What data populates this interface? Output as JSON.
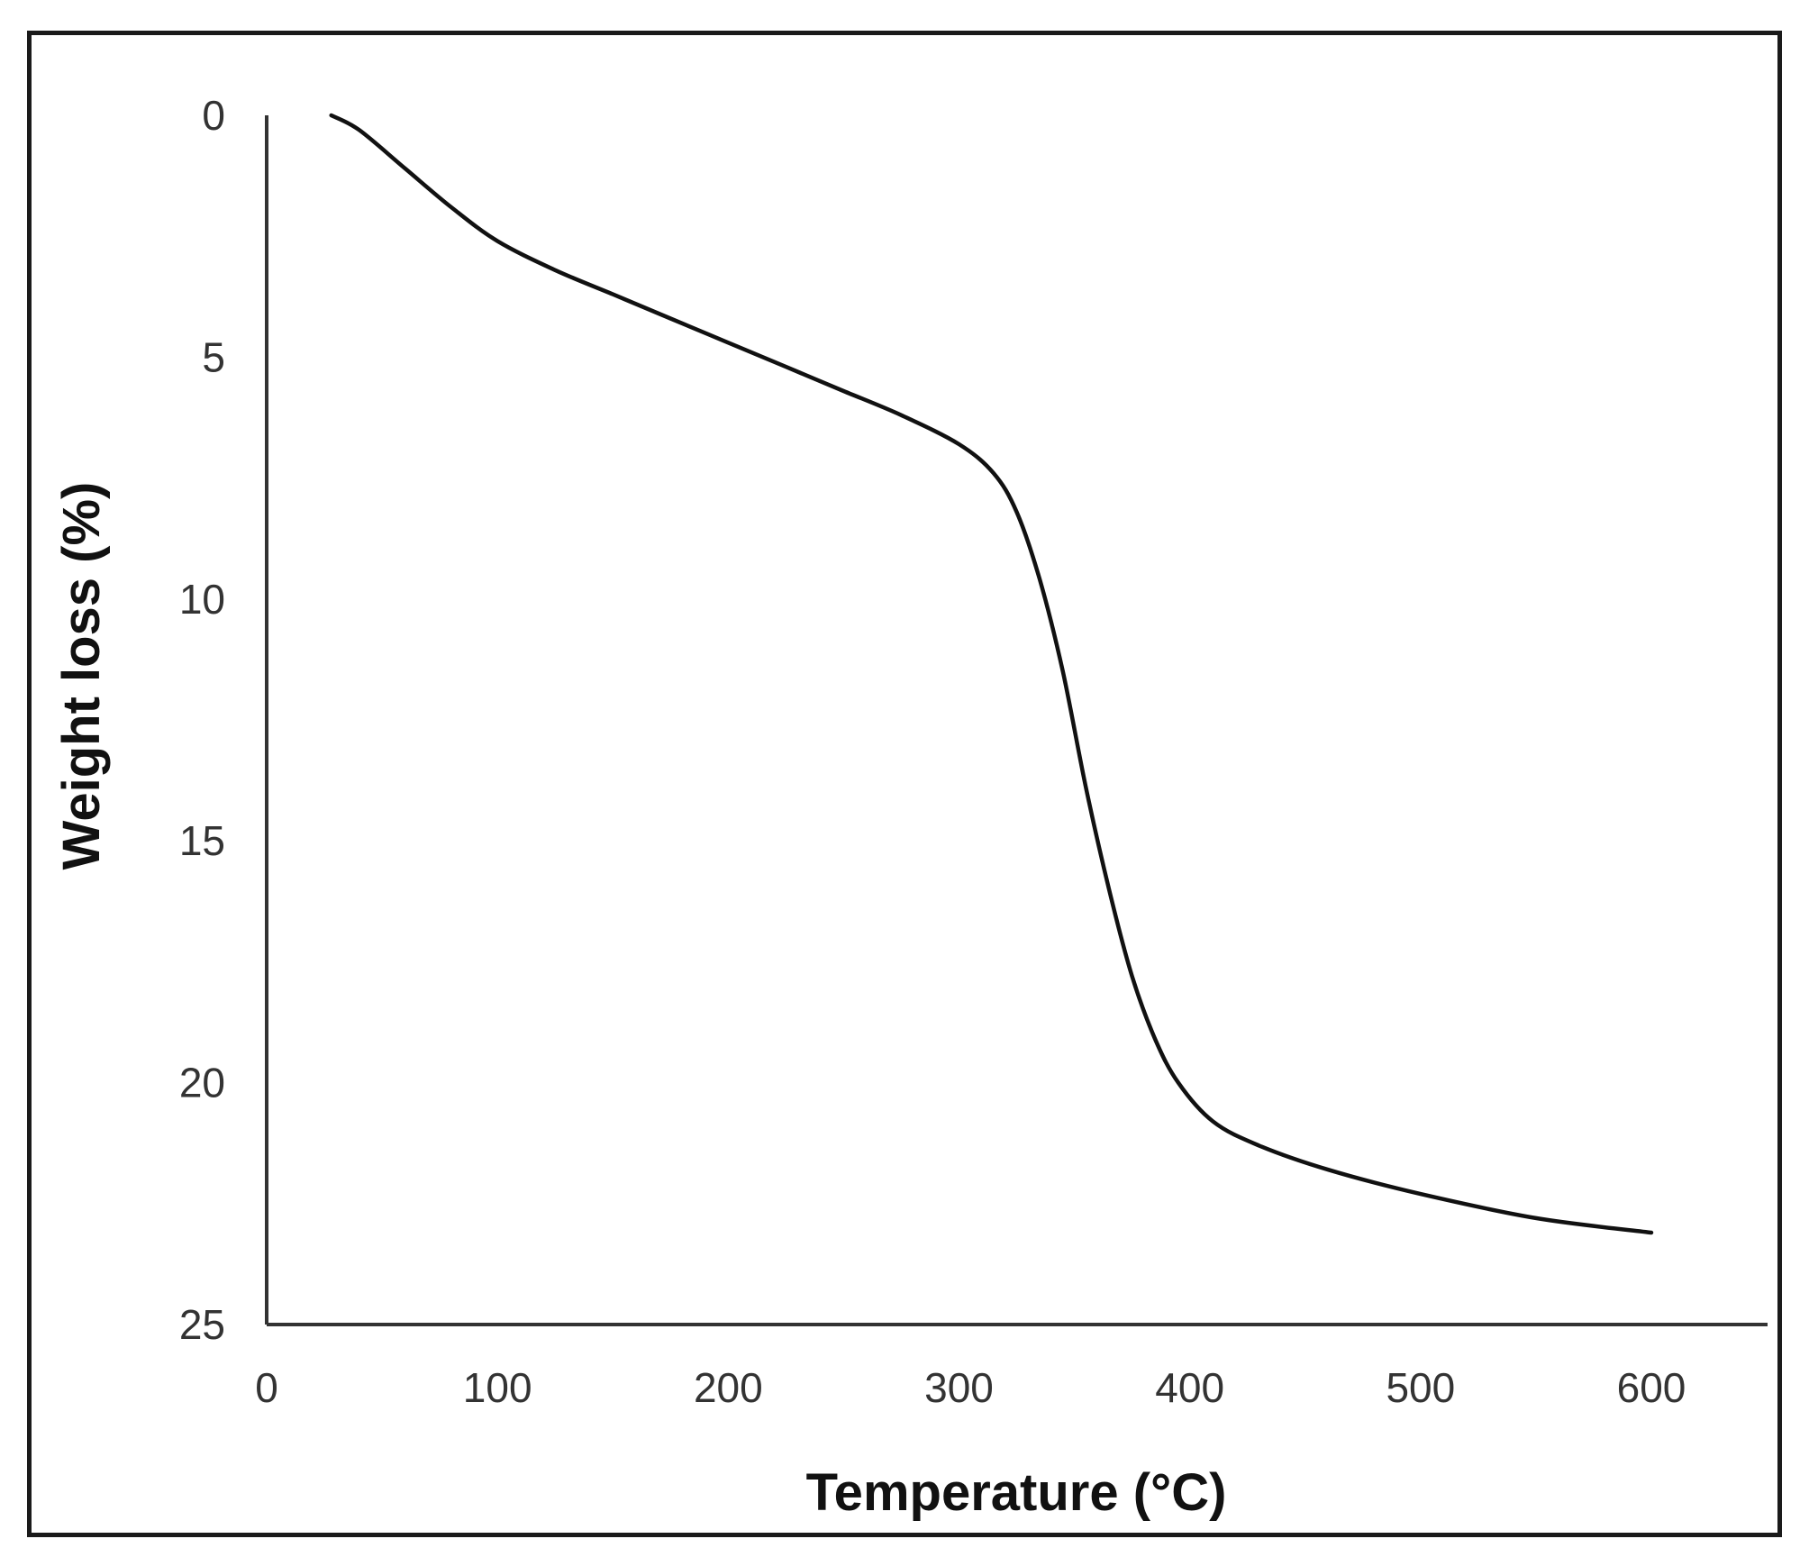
{
  "chart_data": {
    "type": "line",
    "title": "",
    "xlabel": "Temperature (°C)",
    "ylabel": "Weight loss (%)",
    "xlim": [
      0,
      650
    ],
    "ylim": [
      0,
      25
    ],
    "y_inverted": true,
    "x_ticks": [
      "0",
      "100",
      "200",
      "300",
      "400",
      "500",
      "600"
    ],
    "y_ticks": [
      "0",
      "5",
      "10",
      "15",
      "20",
      "25"
    ],
    "grid": false,
    "legend": "none",
    "line_color": "#111111",
    "series": [
      {
        "x": [
          28,
          40,
          60,
          80,
          100,
          125,
          150,
          175,
          200,
          225,
          250,
          275,
          300,
          315,
          325,
          335,
          345,
          355,
          365,
          375,
          385,
          395,
          410,
          430,
          460,
          500,
          550,
          600
        ],
        "y": [
          0,
          0.3,
          1.1,
          1.9,
          2.6,
          3.2,
          3.7,
          4.2,
          4.7,
          5.2,
          5.7,
          6.2,
          6.8,
          7.4,
          8.2,
          9.6,
          11.5,
          13.9,
          16.0,
          17.8,
          19.1,
          20.0,
          20.8,
          21.3,
          21.8,
          22.3,
          22.8,
          23.1
        ]
      }
    ]
  }
}
